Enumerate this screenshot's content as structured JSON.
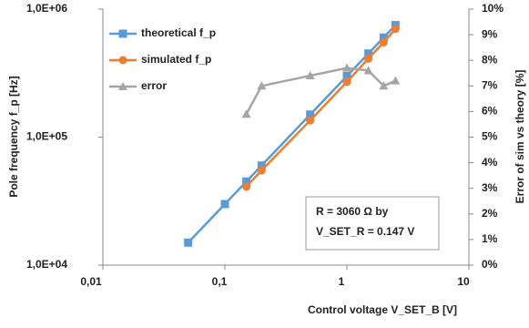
{
  "chart_data": {
    "type": "line",
    "x_label": "Control voltage V_SET_B [V]",
    "y_label": "Pole frequency f_p [Hz]",
    "y2_label": "Error of sim vs theory [%]",
    "xscale": "log",
    "yscale": "log",
    "xlim": [
      0.01,
      10
    ],
    "xticks": [
      {
        "value": 0.01,
        "label": "0,01"
      },
      {
        "value": 0.1,
        "label": "0,1"
      },
      1,
      10
    ],
    "ylim": [
      10000,
      1000000
    ],
    "yticks": [
      {
        "value": 10000,
        "label": "1,0E+04"
      },
      {
        "value": 100000,
        "label": "1,0E+05"
      },
      {
        "value": 1000000,
        "label": "1,0E+06"
      }
    ],
    "y2lim": [
      0,
      10
    ],
    "y2ticks": [
      {
        "value": 0,
        "label": "0%"
      },
      {
        "value": 1,
        "label": "1%"
      },
      {
        "value": 2,
        "label": "2%"
      },
      {
        "value": 3,
        "label": "3%"
      },
      {
        "value": 4,
        "label": "4%"
      },
      {
        "value": 5,
        "label": "5%"
      },
      {
        "value": 6,
        "label": "6%"
      },
      {
        "value": 7,
        "label": "7%"
      },
      {
        "value": 8,
        "label": "8%"
      },
      {
        "value": 9,
        "label": "9%"
      },
      {
        "value": 10,
        "label": "10%"
      }
    ],
    "legend": "top-left",
    "series": [
      {
        "name": "theoretical f_p",
        "color": "#5b9bd5",
        "marker": "square",
        "x": [
          0.05,
          0.1,
          0.15,
          0.2,
          0.5,
          1,
          1.5,
          2,
          2.5
        ],
        "values": [
          15000,
          30000,
          45000,
          60000,
          150000,
          300000,
          450000,
          600000,
          750000
        ]
      },
      {
        "name": "simulated f_p",
        "color": "#ed7d31",
        "marker": "circle",
        "x": [
          0.15,
          0.2,
          0.5,
          1,
          1.5,
          2,
          2.5
        ],
        "values": [
          41000,
          55000,
          135000,
          270000,
          410000,
          550000,
          700000
        ]
      },
      {
        "name": "error",
        "color": "#a5a5a5",
        "marker": "triangle",
        "axis": "y2",
        "x": [
          0.15,
          0.2,
          0.5,
          1,
          1.5,
          2,
          2.5
        ],
        "values": [
          5.9,
          7.0,
          7.4,
          7.7,
          7.6,
          7.0,
          7.2
        ]
      }
    ],
    "annotation": [
      "R = 3060 Ω by",
      "V_SET_R = 0.147 V"
    ]
  }
}
